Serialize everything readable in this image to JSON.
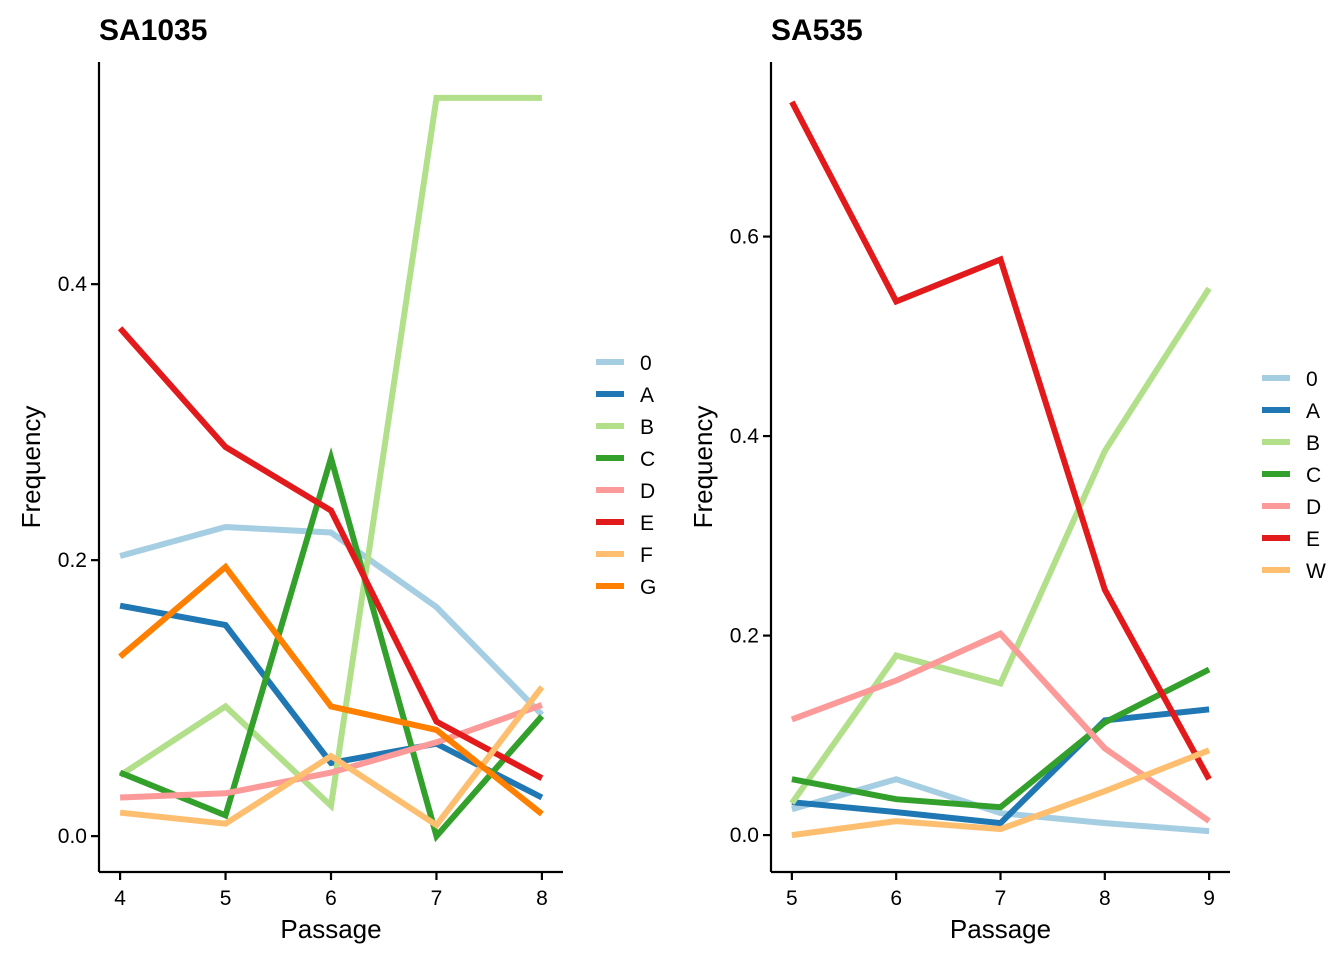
{
  "colors": {
    "0": "#A6CEE3",
    "A": "#1F78B4",
    "B": "#B2DF8A",
    "C": "#33A02C",
    "D": "#FB9A99",
    "E": "#E31A1C",
    "F": "#FDBF6F",
    "G": "#FF7F00",
    "W": "#FDBF6F"
  },
  "chart_data": [
    {
      "type": "line",
      "title": "SA1035",
      "xlabel": "Passage",
      "ylabel": "Frequency",
      "xlim": [
        3.8,
        8.2
      ],
      "ylim": [
        -0.026,
        0.561
      ],
      "xticks": [
        4,
        5,
        6,
        7,
        8
      ],
      "yticks": [
        0.0,
        0.2,
        0.4
      ],
      "ytick_labels": [
        "0.0",
        "0.2",
        "0.4"
      ],
      "x": [
        4,
        5,
        6,
        7,
        8
      ],
      "legend_position": "right",
      "series": [
        {
          "name": "0",
          "values": [
            0.203,
            0.224,
            0.22,
            0.166,
            0.088
          ]
        },
        {
          "name": "A",
          "values": [
            0.167,
            0.153,
            0.053,
            0.067,
            0.028
          ]
        },
        {
          "name": "B",
          "values": [
            0.044,
            0.094,
            0.022,
            0.535,
            0.535
          ]
        },
        {
          "name": "C",
          "values": [
            0.046,
            0.015,
            0.274,
            0.0,
            0.087
          ]
        },
        {
          "name": "D",
          "values": [
            0.028,
            0.031,
            0.046,
            0.068,
            0.095
          ]
        },
        {
          "name": "E",
          "values": [
            0.368,
            0.282,
            0.236,
            0.083,
            0.042
          ]
        },
        {
          "name": "F",
          "values": [
            0.017,
            0.009,
            0.058,
            0.008,
            0.108
          ]
        },
        {
          "name": "G",
          "values": [
            0.13,
            0.195,
            0.094,
            0.077,
            0.016
          ]
        }
      ]
    },
    {
      "type": "line",
      "title": "SA535",
      "xlabel": "Passage",
      "ylabel": "Frequency",
      "xlim": [
        4.8,
        9.2
      ],
      "ylim": [
        -0.037,
        0.775
      ],
      "xticks": [
        5,
        6,
        7,
        8,
        9
      ],
      "yticks": [
        0.0,
        0.2,
        0.4,
        0.6
      ],
      "ytick_labels": [
        "0.0",
        "0.2",
        "0.4",
        "0.6"
      ],
      "x": [
        5,
        6,
        7,
        8,
        9
      ],
      "legend_position": "right",
      "series": [
        {
          "name": "0",
          "values": [
            0.026,
            0.056,
            0.022,
            0.012,
            0.004
          ]
        },
        {
          "name": "A",
          "values": [
            0.033,
            0.023,
            0.012,
            0.115,
            0.126
          ]
        },
        {
          "name": "B",
          "values": [
            0.032,
            0.18,
            0.152,
            0.385,
            0.548
          ]
        },
        {
          "name": "C",
          "values": [
            0.056,
            0.036,
            0.028,
            0.113,
            0.166
          ]
        },
        {
          "name": "D",
          "values": [
            0.116,
            0.155,
            0.202,
            0.087,
            0.014
          ]
        },
        {
          "name": "E",
          "values": [
            0.735,
            0.535,
            0.577,
            0.246,
            0.056
          ]
        },
        {
          "name": "W",
          "values": [
            0.0,
            0.014,
            0.006,
            0.044,
            0.085
          ]
        }
      ]
    }
  ]
}
